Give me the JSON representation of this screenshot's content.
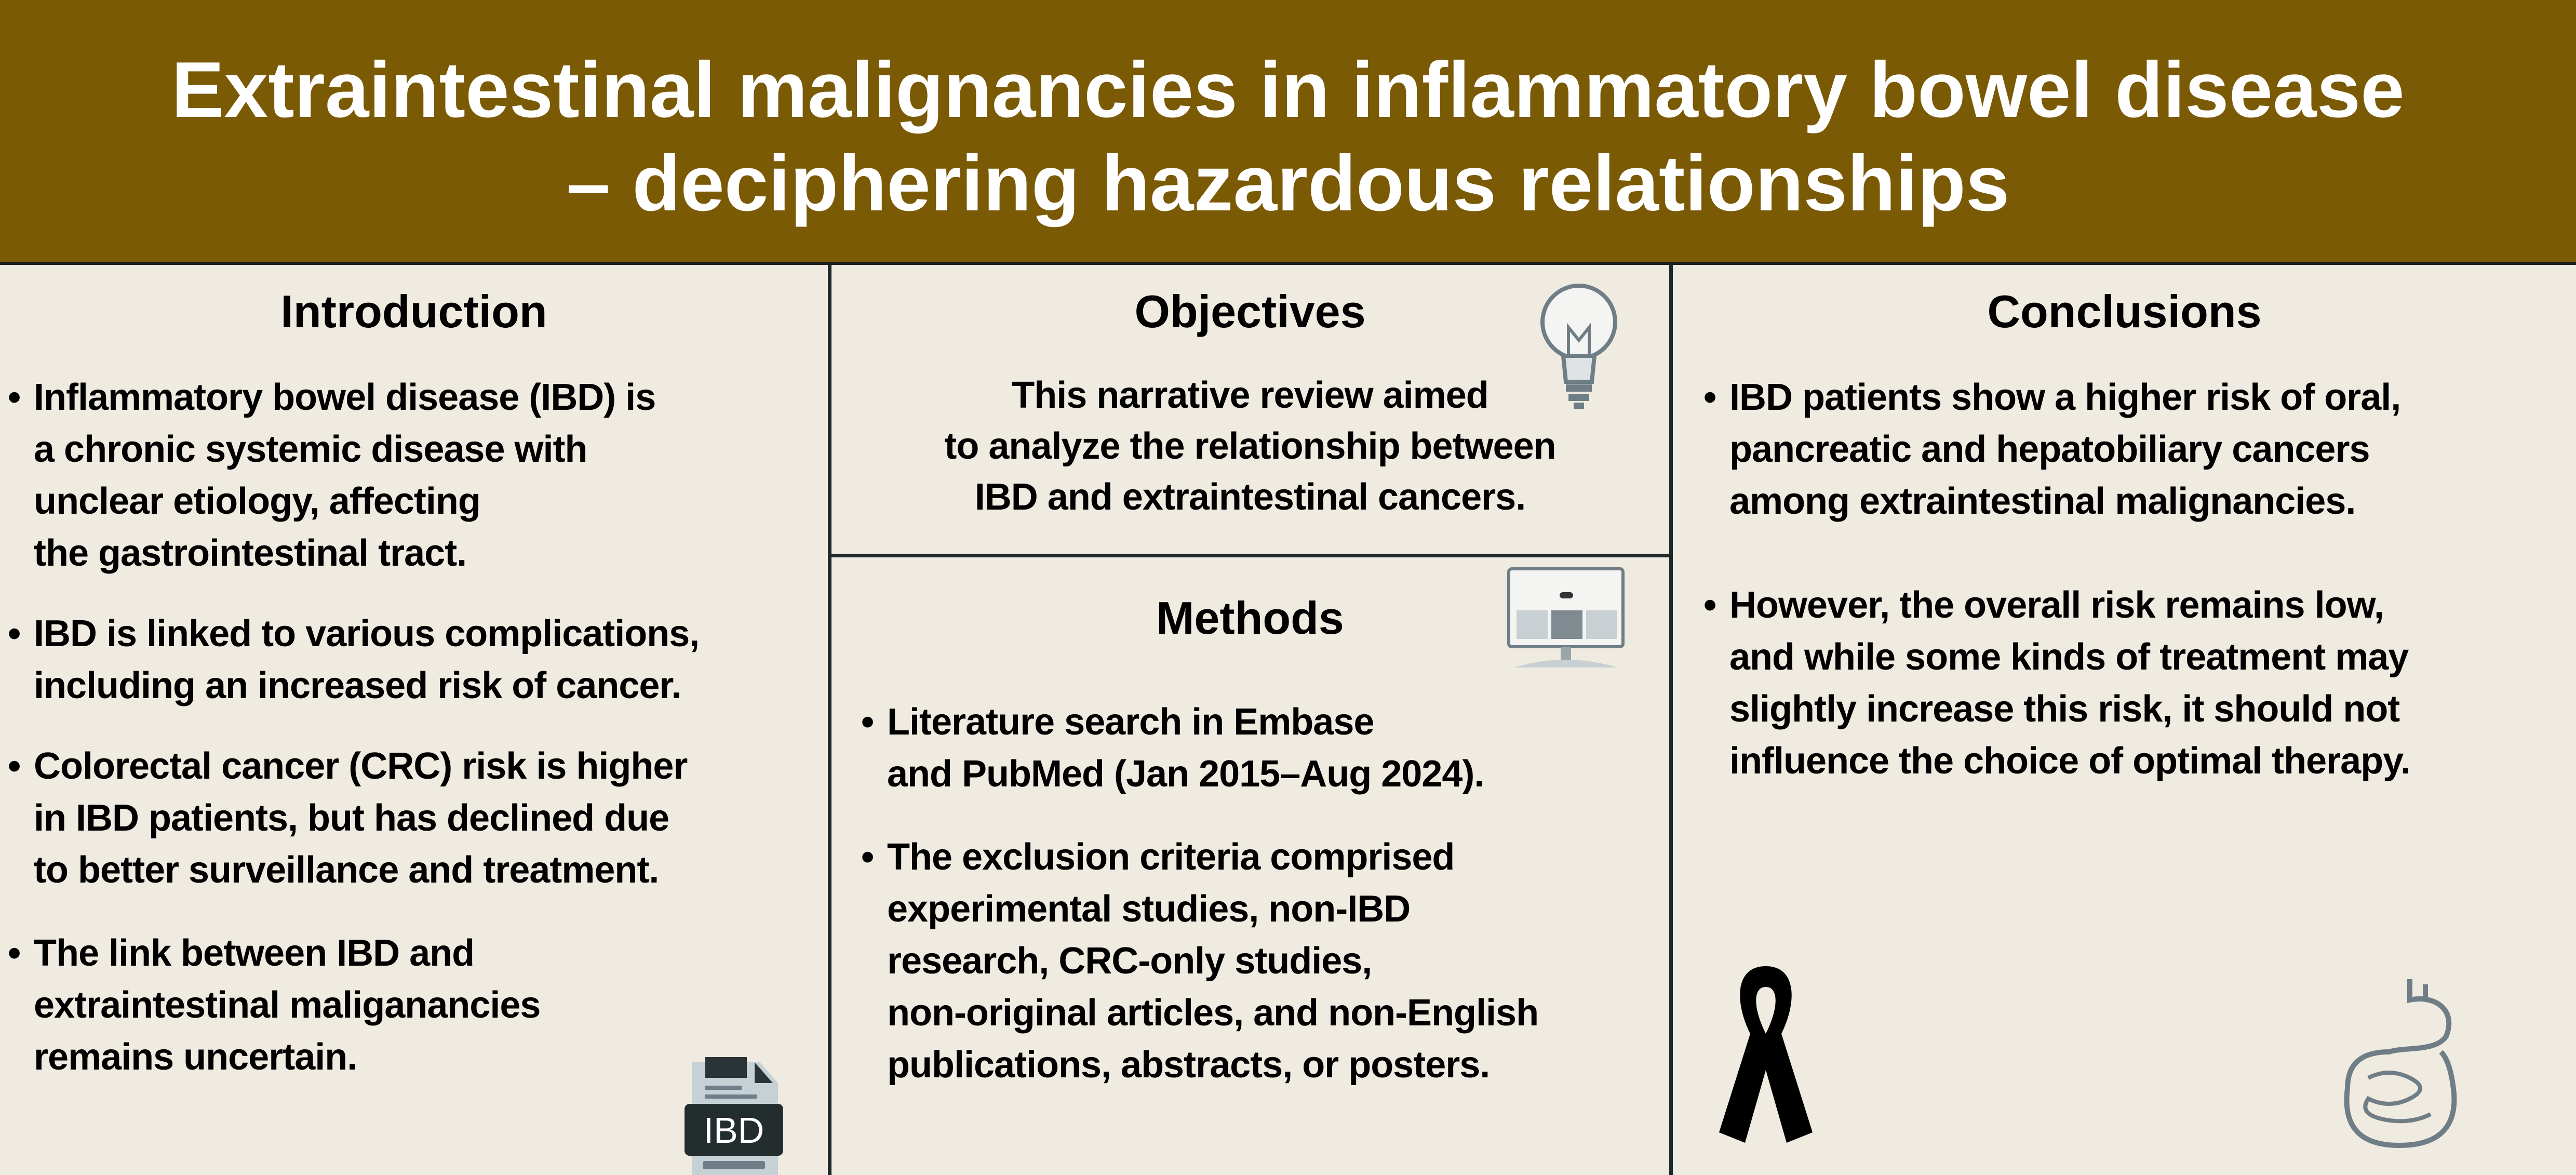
{
  "header": {
    "title_line1": "Extraintestinal malignancies in inflammatory bowel disease",
    "title_line2": "– deciphering hazardous relationships",
    "background": "#7b5a06"
  },
  "introduction": {
    "heading": "Introduction",
    "bullets": [
      [
        "Inflammatory bowel disease (IBD) is",
        "a chronic systemic disease with",
        "unclear etiology, affecting",
        "the gastrointestinal tract."
      ],
      [
        "IBD is linked to various complications,",
        "including an increased risk of cancer."
      ],
      [
        "Colorectal cancer (CRC) risk is higher",
        "in IBD patients, but has declined due",
        "to better surveillance and treatment."
      ],
      [
        "The link between IBD and",
        "extraintestinal maliganancies",
        "remains uncertain."
      ]
    ],
    "icon": "ibd-document-icon",
    "icon_label": "IBD"
  },
  "objectives": {
    "heading": "Objectives",
    "lines": [
      "This narrative review aimed",
      "to analyze the relationship between",
      "IBD and extraintestinal cancers."
    ],
    "icon": "lightbulb-icon"
  },
  "methods": {
    "heading": "Methods",
    "bullets": [
      [
        "Literature search in Embase",
        "and PubMed (Jan 2015–Aug 2024)."
      ],
      [
        "The exclusion criteria comprised",
        "experimental studies, non-IBD",
        "research, CRC-only studies,",
        "non-original articles, and non-English",
        "publications, abstracts, or posters."
      ]
    ],
    "icon": "computer-monitor-icon"
  },
  "conclusions": {
    "heading": "Conclusions",
    "bullets": [
      [
        "IBD patients show a higher risk of oral,",
        "pancreatic and hepatobiliary cancers",
        "among extraintestinal malignancies."
      ],
      [
        "However, the overall risk remains low,",
        "and while some kinds of treatment may",
        "slightly increase this risk, it should not",
        "influence the choice of optimal therapy."
      ]
    ],
    "icons": [
      "awareness-ribbon-icon",
      "digestive-system-icon"
    ]
  }
}
